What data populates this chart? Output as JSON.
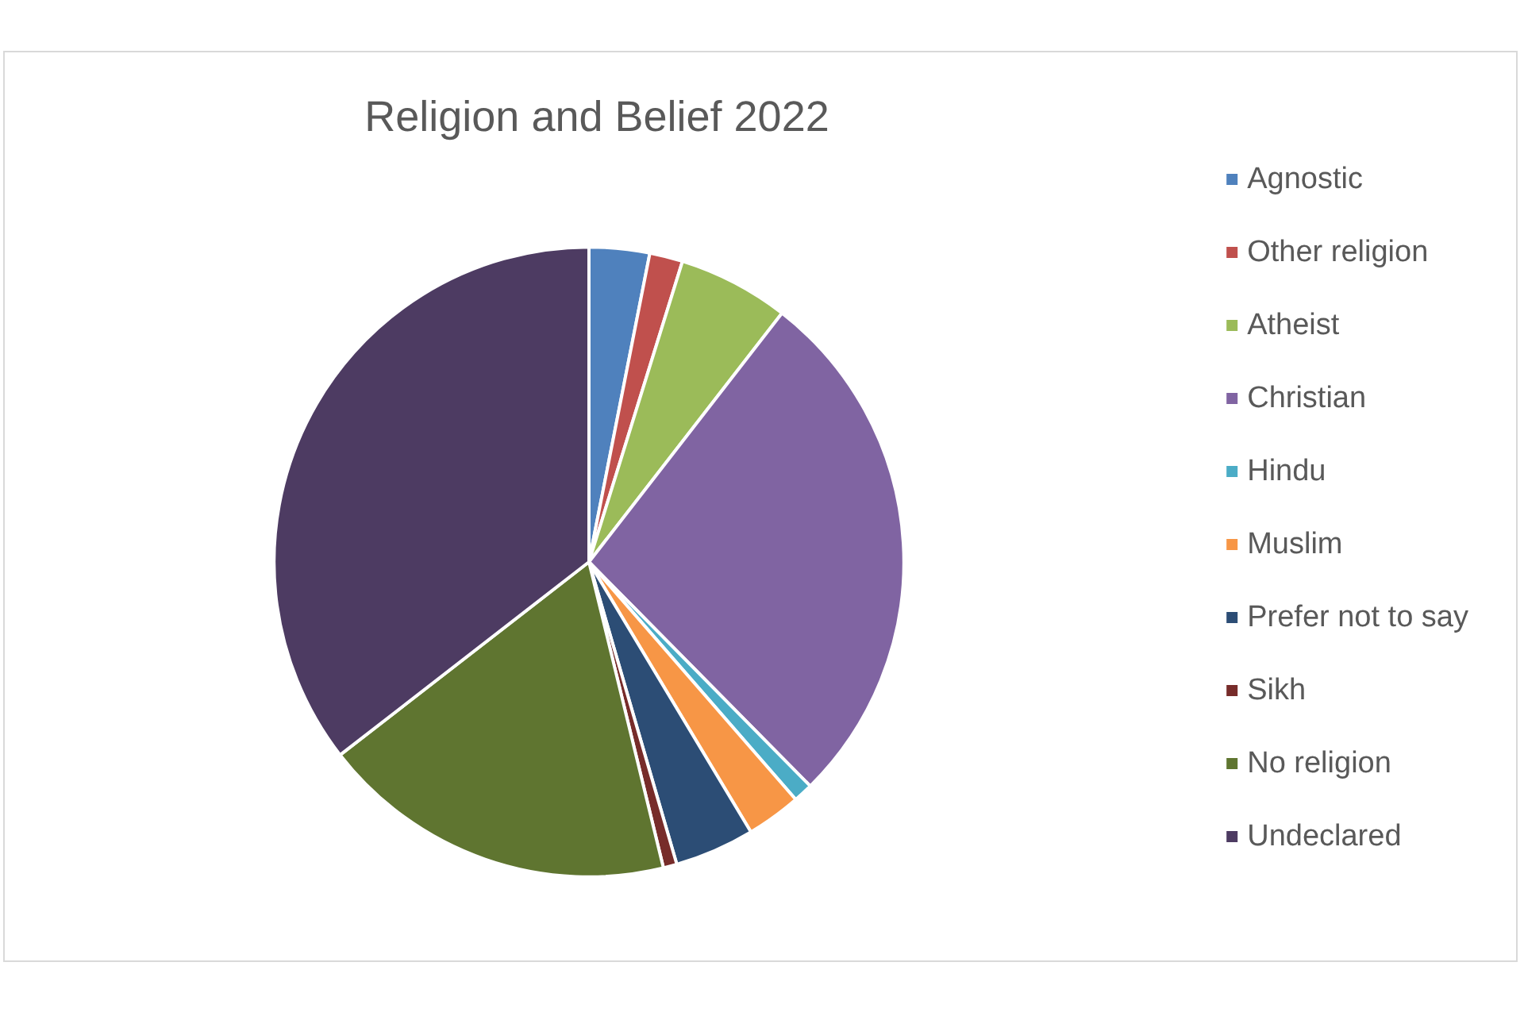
{
  "chart_data": {
    "type": "pie",
    "title": "Religion and Belief 2022",
    "categories": [
      "Agnostic",
      "Other religion",
      "Atheist",
      "Christian",
      "Hindu",
      "Muslim",
      "Prefer not to say",
      "Sikh",
      "No religion",
      "Undeclared"
    ],
    "values": [
      3.1,
      1.7,
      5.7,
      27.1,
      1.0,
      2.8,
      4.1,
      0.7,
      18.3,
      35.5
    ],
    "colors": [
      "#4f81bd",
      "#c0504d",
      "#9bbb59",
      "#8064a2",
      "#4bacc6",
      "#f79646",
      "#2c4d75",
      "#772c2a",
      "#5f7530",
      "#4d3b62"
    ],
    "legend": "right"
  }
}
